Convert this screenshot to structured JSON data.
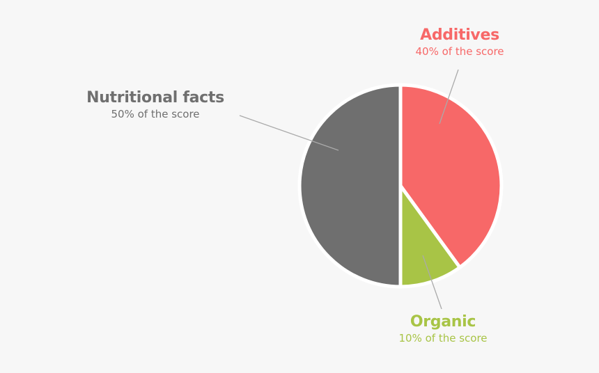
{
  "chart_data": {
    "type": "pie",
    "start": "top",
    "direction": "clockwise",
    "slices": [
      {
        "name": "Additives",
        "value": 40,
        "label": "40% of the score",
        "color": "#f76868"
      },
      {
        "name": "Organic",
        "value": 10,
        "label": "10% of the score",
        "color": "#a8c446"
      },
      {
        "name": "Nutritional facts",
        "value": 50,
        "label": "50% of the score",
        "color": "#6f6f6f"
      }
    ],
    "separator_color": "#ffffff",
    "leader_line_color": "#aaaaaa",
    "background": "#f7f7f7"
  }
}
